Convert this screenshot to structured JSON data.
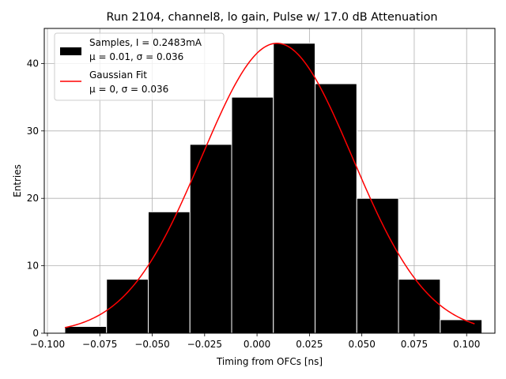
{
  "chart_data": {
    "type": "bar",
    "title": "Run 2104, channel8, lo gain, Pulse w/ 17.0 dB Attenuation",
    "xlabel": "Timing from OFCs [ns]",
    "ylabel": "Entries",
    "xlim": [
      -0.1015,
      0.1135
    ],
    "ylim": [
      0,
      45.2
    ],
    "grid": true,
    "legend_position": "upper-left",
    "x_ticks": [
      -0.1,
      -0.075,
      -0.05,
      -0.025,
      0.0,
      0.025,
      0.05,
      0.075,
      0.1
    ],
    "x_tick_labels": [
      "−0.100",
      "−0.075",
      "−0.050",
      "−0.025",
      "0.000",
      "0.025",
      "0.050",
      "0.075",
      "0.100"
    ],
    "y_ticks": [
      0,
      10,
      20,
      30,
      40
    ],
    "y_tick_labels": [
      "0",
      "10",
      "20",
      "30",
      "40"
    ],
    "histogram": {
      "name_line1": "Samples, I = 0.2483mA",
      "name_line2": "μ = 0.01, σ = 0.036",
      "color": "#000000",
      "edge_color": "#ffffff",
      "bin_edges": [
        -0.0917,
        -0.0718,
        -0.0519,
        -0.032,
        -0.0121,
        0.0078,
        0.0277,
        0.0476,
        0.0675,
        0.0874,
        0.1073
      ],
      "counts": [
        1,
        8,
        18,
        28,
        35,
        43,
        37,
        20,
        8,
        2
      ]
    },
    "fit": {
      "name_line1": "Gaussian Fit",
      "name_line2": "μ = 0, σ = 0.036",
      "color": "#ff0000",
      "amplitude": 43,
      "mu": 0.0095,
      "sigma": 0.036,
      "x_range": [
        -0.0917,
        0.1038
      ]
    }
  }
}
